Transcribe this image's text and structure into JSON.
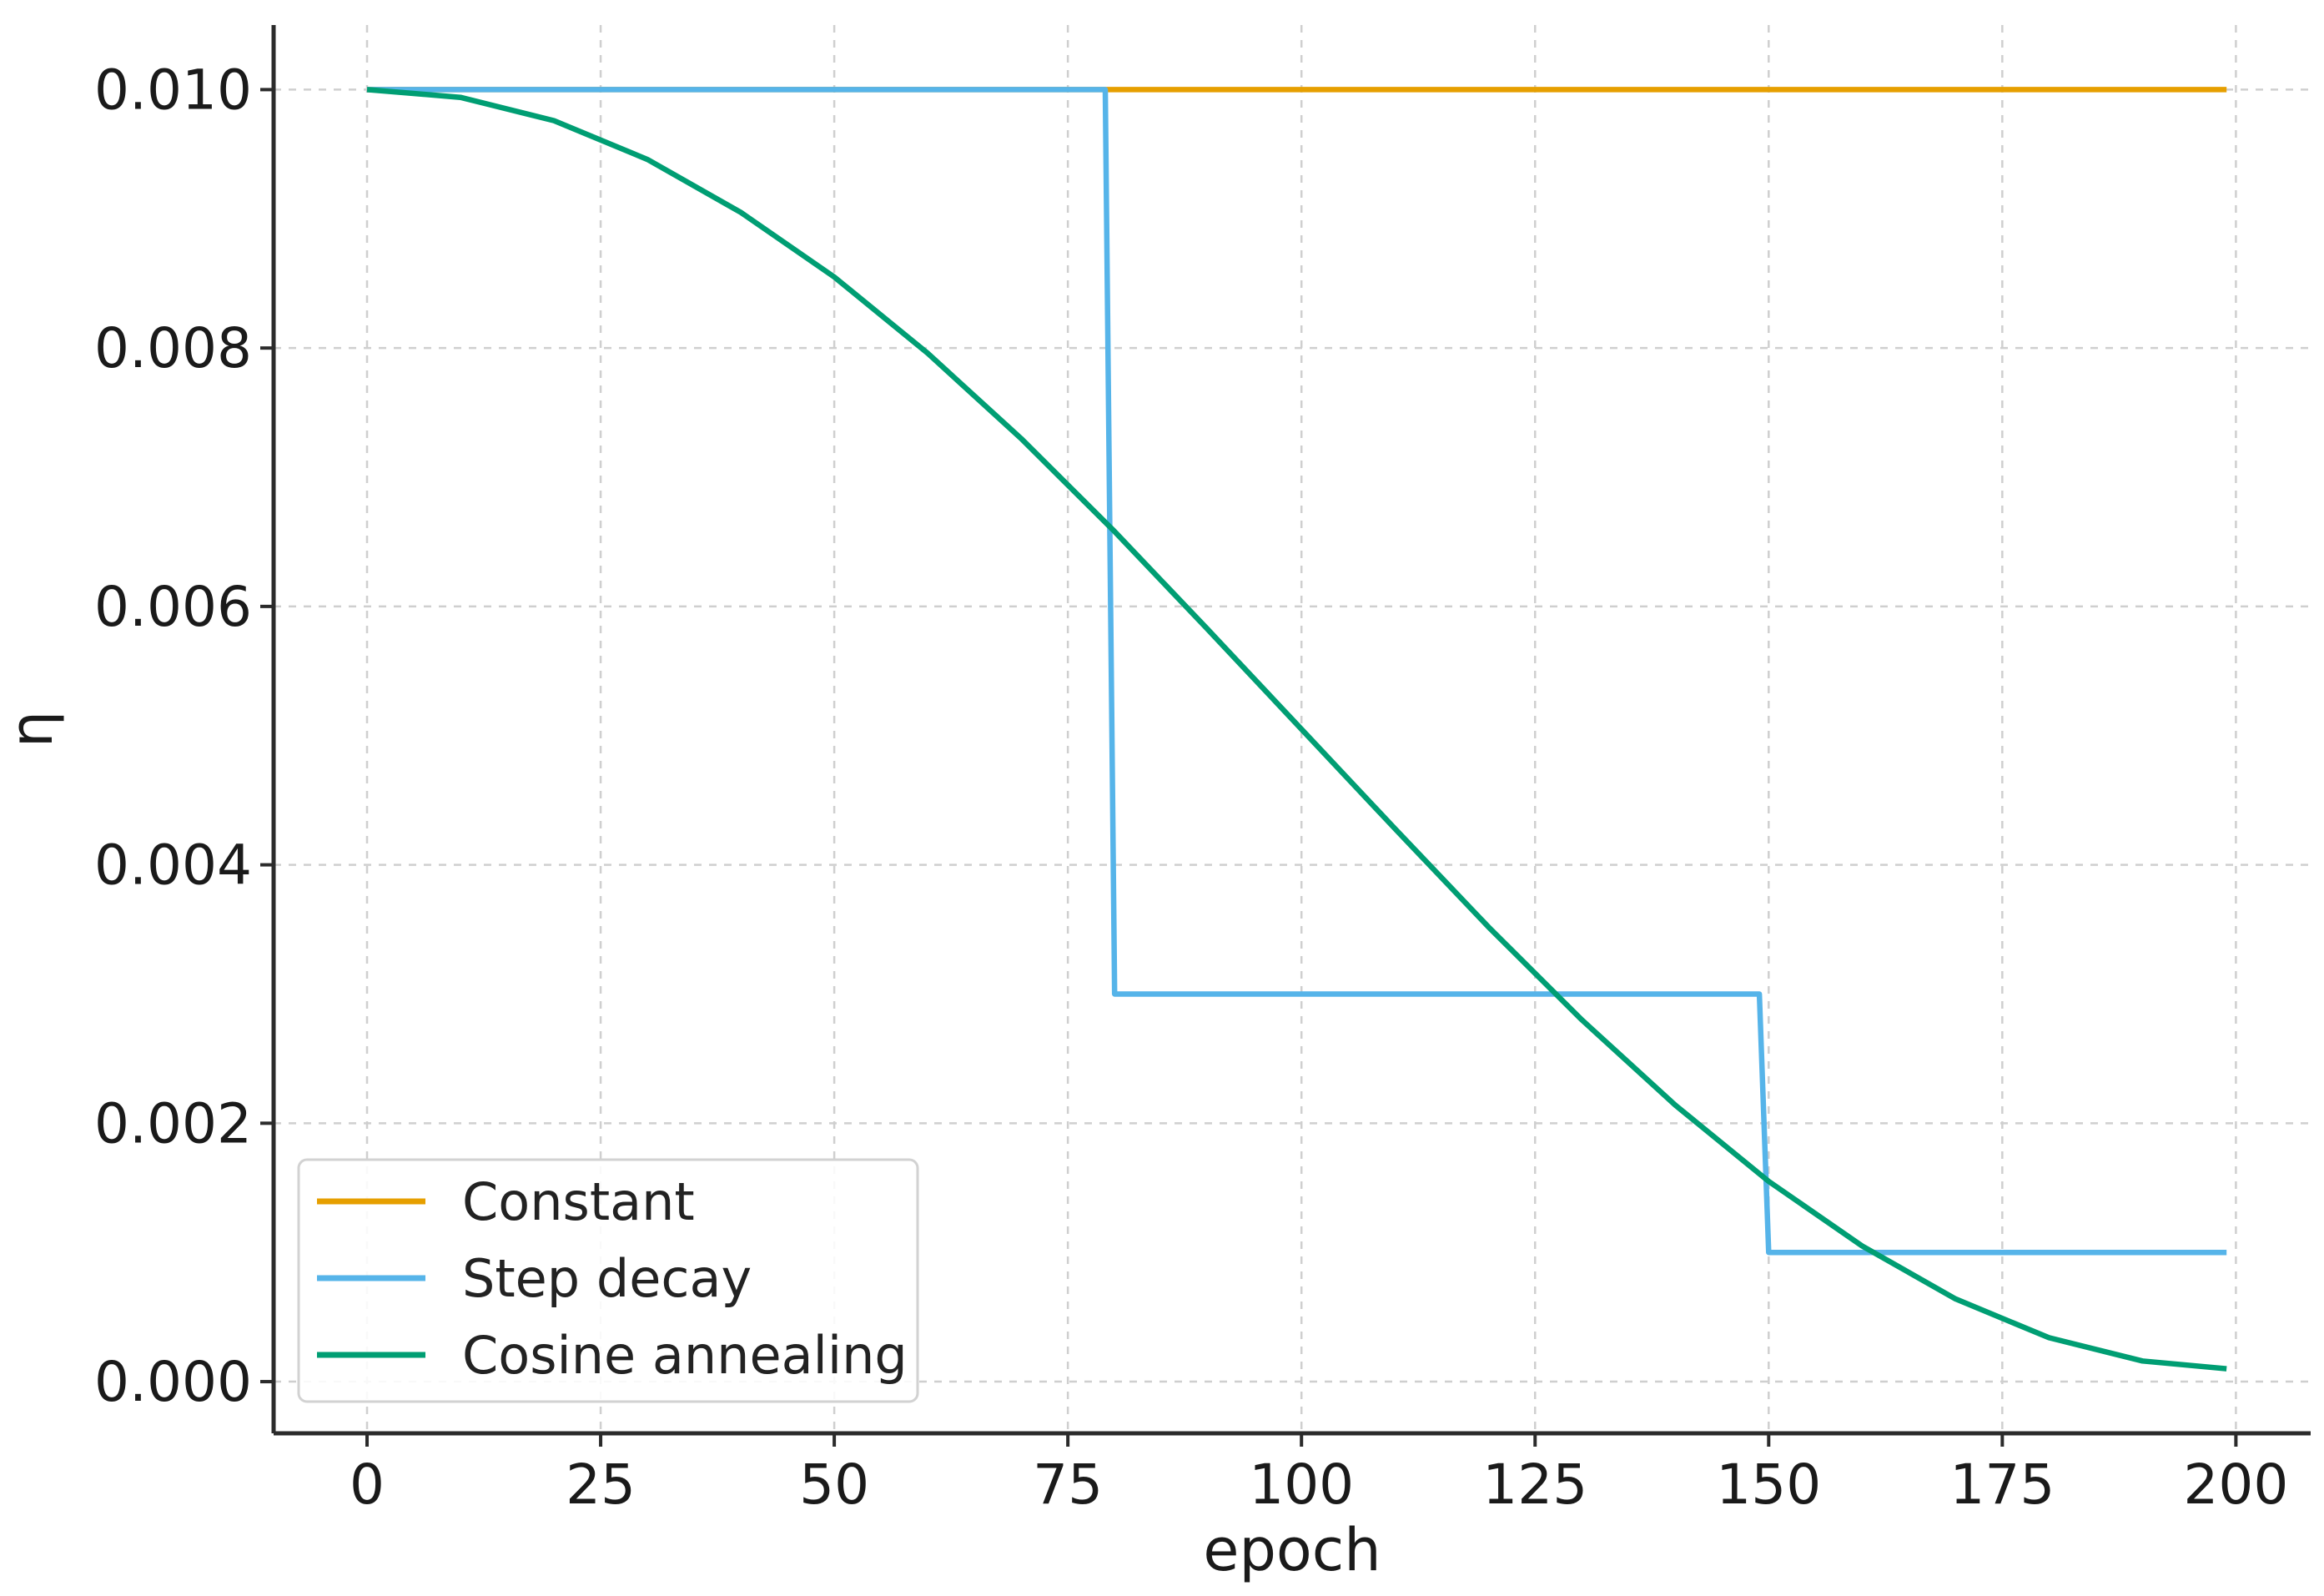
{
  "chart_data": {
    "type": "line",
    "xlabel": "epoch",
    "ylabel": "η",
    "xlim": [
      -10,
      208
    ],
    "ylim": [
      -0.0004,
      0.0105
    ],
    "x_ticks": [
      0,
      25,
      50,
      75,
      100,
      125,
      150,
      175,
      200
    ],
    "y_ticks": [
      0.0,
      0.002,
      0.004,
      0.006,
      0.008,
      0.01
    ],
    "y_tick_labels": [
      "0.000",
      "0.002",
      "0.004",
      "0.006",
      "0.008",
      "0.010"
    ],
    "grid": true,
    "legend": {
      "location": "lower-left"
    },
    "series": [
      {
        "name": "Constant",
        "color": "#E69F00",
        "x": [
          0,
          199
        ],
        "y": [
          0.01,
          0.01
        ]
      },
      {
        "name": "Step decay",
        "color": "#56B4E9",
        "x": [
          0,
          79,
          80,
          149,
          150,
          199
        ],
        "y": [
          0.01,
          0.01,
          0.003,
          0.003,
          0.001,
          0.001
        ]
      },
      {
        "name": "Cosine annealing",
        "color": "#009E73",
        "x": [
          0,
          10,
          20,
          30,
          40,
          50,
          60,
          70,
          80,
          90,
          100,
          110,
          120,
          130,
          140,
          150,
          160,
          170,
          180,
          190,
          199
        ],
        "y": [
          0.01,
          0.00994,
          0.00976,
          0.00946,
          0.00905,
          0.00855,
          0.00796,
          0.0073,
          0.00658,
          0.00582,
          0.00505,
          0.00428,
          0.00352,
          0.0028,
          0.00214,
          0.00155,
          0.00105,
          0.00064,
          0.00034,
          0.00016,
          0.0001
        ]
      }
    ]
  }
}
